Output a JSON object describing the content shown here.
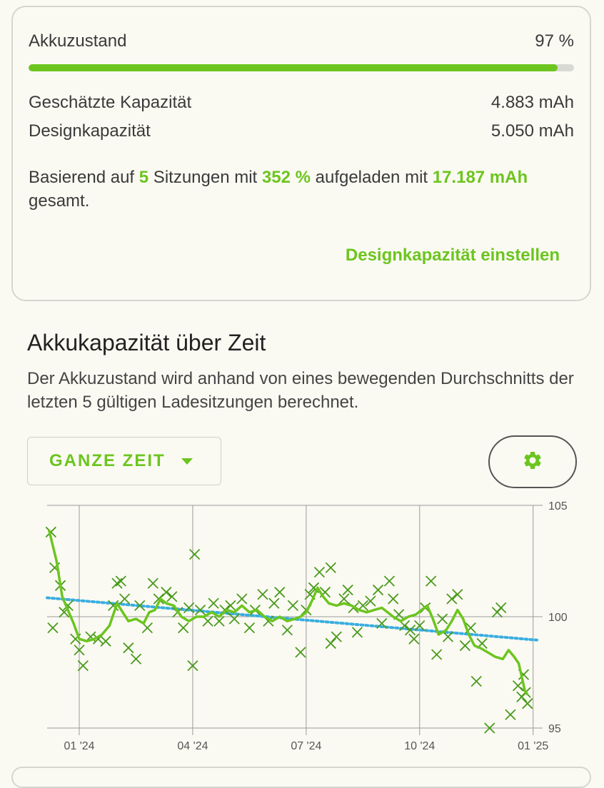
{
  "health": {
    "label": "Akkuzustand",
    "value": "97 %",
    "percent": 97,
    "estimated_label": "Geschätzte Kapazität",
    "estimated_value": "4.883 mAh",
    "design_label": "Designkapazität",
    "design_value": "5.050 mAh",
    "summary": {
      "p1": "Basierend auf ",
      "sessions": "5",
      "p2": " Sitzungen mit ",
      "charged_pct": "352 %",
      "p3": " aufgeladen mit ",
      "charged_mah": "17.187 mAh",
      "p4": " gesamt."
    },
    "set_design_link": "Designkapazität einstellen"
  },
  "section": {
    "title": "Akkukapazität über Zeit",
    "description": "Der Akkuzustand wird anhand von eines bewegenden Durchschnitts der letzten 5 gültigen Ladesitzungen berechnet."
  },
  "controls": {
    "range_label": "GANZE ZEIT",
    "settings_icon": "gear-icon"
  },
  "colors": {
    "accent": "#6cc51f",
    "marker": "#4a9a1e",
    "trend": "#3aaee0",
    "grid": "#9a9a9a"
  },
  "chart_data": {
    "type": "scatter",
    "x_unit": "month index (0 = 01 '24)",
    "xlim": [
      -0.85,
      12.1
    ],
    "ylim": [
      95,
      105
    ],
    "x_ticks": [
      0,
      3,
      6,
      9,
      12
    ],
    "x_tick_labels": [
      "01 '24",
      "04 '24",
      "07 '24",
      "10 '24",
      "01 '25"
    ],
    "y_ticks": [
      95,
      100,
      105
    ],
    "y_tick_labels": [
      "95",
      "100",
      "105"
    ],
    "grid": true,
    "series": [
      {
        "marker": "x",
        "points": [
          [
            -0.75,
            103.8
          ],
          [
            -0.65,
            102.2
          ],
          [
            -0.5,
            101.4
          ],
          [
            -0.7,
            99.5
          ],
          [
            -0.4,
            100.2
          ],
          [
            -0.3,
            100.5
          ],
          [
            -0.1,
            99.0
          ],
          [
            0.0,
            98.5
          ],
          [
            0.1,
            97.8
          ],
          [
            0.3,
            99.1
          ],
          [
            0.5,
            99.0
          ],
          [
            0.7,
            98.9
          ],
          [
            0.9,
            100.5
          ],
          [
            1.0,
            101.5
          ],
          [
            1.1,
            101.6
          ],
          [
            1.2,
            100.8
          ],
          [
            1.3,
            98.6
          ],
          [
            1.5,
            98.1
          ],
          [
            1.6,
            100.5
          ],
          [
            1.8,
            99.5
          ],
          [
            1.95,
            101.5
          ],
          [
            2.1,
            100.8
          ],
          [
            2.3,
            101.1
          ],
          [
            2.45,
            100.9
          ],
          [
            2.6,
            100.2
          ],
          [
            2.75,
            99.5
          ],
          [
            2.9,
            100.4
          ],
          [
            3.05,
            102.8
          ],
          [
            3.0,
            97.8
          ],
          [
            3.2,
            100.3
          ],
          [
            3.4,
            99.8
          ],
          [
            3.55,
            100.6
          ],
          [
            3.7,
            99.8
          ],
          [
            3.85,
            100.3
          ],
          [
            4.0,
            100.5
          ],
          [
            4.1,
            99.9
          ],
          [
            4.3,
            100.8
          ],
          [
            4.5,
            99.5
          ],
          [
            4.65,
            100.3
          ],
          [
            4.85,
            101.0
          ],
          [
            5.0,
            99.8
          ],
          [
            5.15,
            100.6
          ],
          [
            5.3,
            101.1
          ],
          [
            5.5,
            99.4
          ],
          [
            5.65,
            100.5
          ],
          [
            5.85,
            98.4
          ],
          [
            6.0,
            100.3
          ],
          [
            6.1,
            101.0
          ],
          [
            6.2,
            101.3
          ],
          [
            6.35,
            102.0
          ],
          [
            6.5,
            101.1
          ],
          [
            6.65,
            98.8
          ],
          [
            6.8,
            99.1
          ],
          [
            6.65,
            102.2
          ],
          [
            7.0,
            100.8
          ],
          [
            7.1,
            101.2
          ],
          [
            7.25,
            100.4
          ],
          [
            7.35,
            99.3
          ],
          [
            7.5,
            100.5
          ],
          [
            7.7,
            100.7
          ],
          [
            7.9,
            101.2
          ],
          [
            8.0,
            99.7
          ],
          [
            8.2,
            101.6
          ],
          [
            8.3,
            100.8
          ],
          [
            8.45,
            100.1
          ],
          [
            8.6,
            99.6
          ],
          [
            8.75,
            99.4
          ],
          [
            8.85,
            99.0
          ],
          [
            9.0,
            99.6
          ],
          [
            9.15,
            100.4
          ],
          [
            9.3,
            101.6
          ],
          [
            9.45,
            98.3
          ],
          [
            9.6,
            99.9
          ],
          [
            9.75,
            99.1
          ],
          [
            9.85,
            100.8
          ],
          [
            10.0,
            101.0
          ],
          [
            10.2,
            98.7
          ],
          [
            10.35,
            99.5
          ],
          [
            10.5,
            97.1
          ],
          [
            10.65,
            98.8
          ],
          [
            10.85,
            95.0
          ],
          [
            11.05,
            100.2
          ],
          [
            11.15,
            100.4
          ],
          [
            11.4,
            95.6
          ],
          [
            11.6,
            96.9
          ],
          [
            11.7,
            96.4
          ],
          [
            11.75,
            97.4
          ],
          [
            11.8,
            96.6
          ],
          [
            11.85,
            96.1
          ]
        ]
      },
      {
        "line": "moving average",
        "points": [
          [
            -0.8,
            103.9
          ],
          [
            -0.6,
            102.5
          ],
          [
            -0.45,
            100.9
          ],
          [
            -0.3,
            100.3
          ],
          [
            -0.15,
            99.7
          ],
          [
            0.0,
            99.0
          ],
          [
            0.2,
            98.9
          ],
          [
            0.4,
            99.0
          ],
          [
            0.6,
            99.2
          ],
          [
            0.8,
            99.6
          ],
          [
            1.0,
            100.6
          ],
          [
            1.15,
            100.2
          ],
          [
            1.3,
            99.8
          ],
          [
            1.5,
            99.9
          ],
          [
            1.7,
            99.7
          ],
          [
            1.85,
            100.2
          ],
          [
            2.0,
            100.3
          ],
          [
            2.15,
            100.8
          ],
          [
            2.3,
            100.6
          ],
          [
            2.5,
            100.5
          ],
          [
            2.7,
            100.0
          ],
          [
            2.9,
            99.8
          ],
          [
            3.1,
            100.0
          ],
          [
            3.3,
            100.0
          ],
          [
            3.5,
            100.2
          ],
          [
            3.7,
            100.0
          ],
          [
            3.9,
            100.3
          ],
          [
            4.1,
            100.2
          ],
          [
            4.3,
            100.5
          ],
          [
            4.5,
            100.2
          ],
          [
            4.7,
            100.3
          ],
          [
            4.9,
            100.0
          ],
          [
            5.1,
            99.8
          ],
          [
            5.3,
            100.0
          ],
          [
            5.5,
            99.8
          ],
          [
            5.7,
            99.9
          ],
          [
            5.85,
            100.0
          ],
          [
            6.0,
            100.2
          ],
          [
            6.15,
            100.7
          ],
          [
            6.3,
            101.3
          ],
          [
            6.45,
            100.9
          ],
          [
            6.6,
            100.6
          ],
          [
            6.8,
            100.5
          ],
          [
            7.0,
            100.6
          ],
          [
            7.2,
            100.5
          ],
          [
            7.4,
            100.3
          ],
          [
            7.6,
            100.2
          ],
          [
            7.8,
            100.3
          ],
          [
            8.0,
            100.4
          ],
          [
            8.15,
            100.2
          ],
          [
            8.3,
            100.0
          ],
          [
            8.5,
            99.8
          ],
          [
            8.7,
            100.0
          ],
          [
            8.9,
            100.1
          ],
          [
            9.05,
            100.3
          ],
          [
            9.2,
            100.5
          ],
          [
            9.35,
            99.9
          ],
          [
            9.5,
            99.2
          ],
          [
            9.7,
            99.4
          ],
          [
            9.85,
            99.8
          ],
          [
            10.0,
            100.3
          ],
          [
            10.15,
            99.9
          ],
          [
            10.3,
            99.2
          ],
          [
            10.45,
            98.7
          ],
          [
            10.6,
            98.6
          ],
          [
            10.8,
            98.4
          ],
          [
            11.0,
            98.2
          ],
          [
            11.2,
            98.1
          ],
          [
            11.35,
            98.5
          ],
          [
            11.5,
            98.2
          ],
          [
            11.62,
            97.9
          ],
          [
            11.7,
            97.3
          ],
          [
            11.78,
            96.7
          ],
          [
            11.85,
            96.5
          ]
        ]
      },
      {
        "line": "trend",
        "style": "dotted",
        "points": [
          [
            -0.85,
            100.85
          ],
          [
            12.1,
            98.95
          ]
        ]
      }
    ]
  }
}
